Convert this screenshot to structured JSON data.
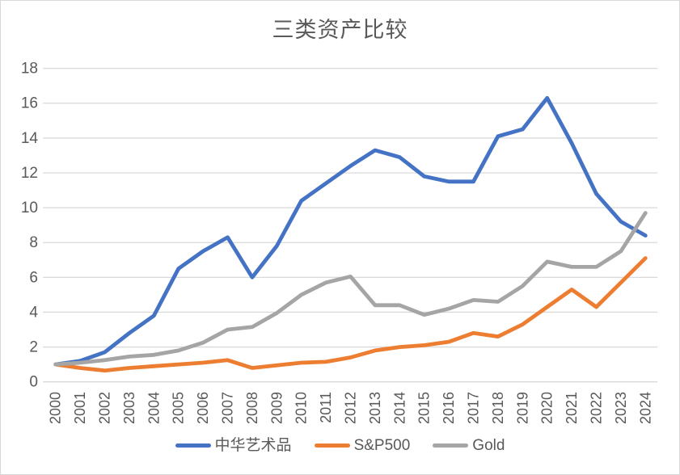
{
  "window": {
    "background": "#FFFFFF",
    "border_color": "#D9D9D9"
  },
  "chart_data": {
    "type": "line",
    "title": "三类资产比较",
    "x": [
      "2000",
      "2001",
      "2002",
      "2003",
      "2004",
      "2005",
      "2006",
      "2007",
      "2008",
      "2009",
      "2010",
      "2011",
      "2012",
      "2013",
      "2014",
      "2015",
      "2016",
      "2017",
      "2018",
      "2019",
      "2020",
      "2021",
      "2022",
      "2023",
      "2024"
    ],
    "series": [
      {
        "id": "art",
        "name": "中华艺术品",
        "color": "#4472C4",
        "values": [
          1,
          1.2,
          1.7,
          2.8,
          3.8,
          6.5,
          7.5,
          8.3,
          6,
          7.8,
          10.4,
          11.4,
          12.4,
          13.3,
          12.9,
          11.8,
          11.5,
          11.5,
          14.1,
          14.5,
          16.3,
          13.7,
          10.8,
          9.2,
          8.4
        ]
      },
      {
        "id": "sp500",
        "name": "S&P500",
        "color": "#ED7D31",
        "values": [
          1,
          0.8,
          0.65,
          0.8,
          0.9,
          1,
          1.1,
          1.25,
          0.8,
          0.95,
          1.1,
          1.15,
          1.4,
          1.8,
          2,
          2.1,
          2.3,
          2.8,
          2.6,
          3.3,
          4.3,
          5.3,
          4.3,
          5.7,
          7.1
        ]
      },
      {
        "id": "gold",
        "name": "Gold",
        "color": "#A5A5A5",
        "values": [
          1,
          1.1,
          1.25,
          1.45,
          1.55,
          1.8,
          2.25,
          3,
          3.15,
          3.95,
          5,
          5.7,
          6.05,
          4.4,
          4.4,
          3.85,
          4.2,
          4.7,
          4.6,
          5.5,
          6.9,
          6.6,
          6.6,
          7.5,
          9.7
        ]
      }
    ],
    "ylim": [
      0,
      18
    ],
    "yticks": [
      0,
      2,
      4,
      6,
      8,
      10,
      12,
      14,
      16,
      18
    ],
    "grid": true,
    "legend_position": "bottom",
    "xlabel": "",
    "ylabel": "",
    "text_color": "#595959",
    "grid_color": "#D9D9D9",
    "line_width": 4.8
  }
}
